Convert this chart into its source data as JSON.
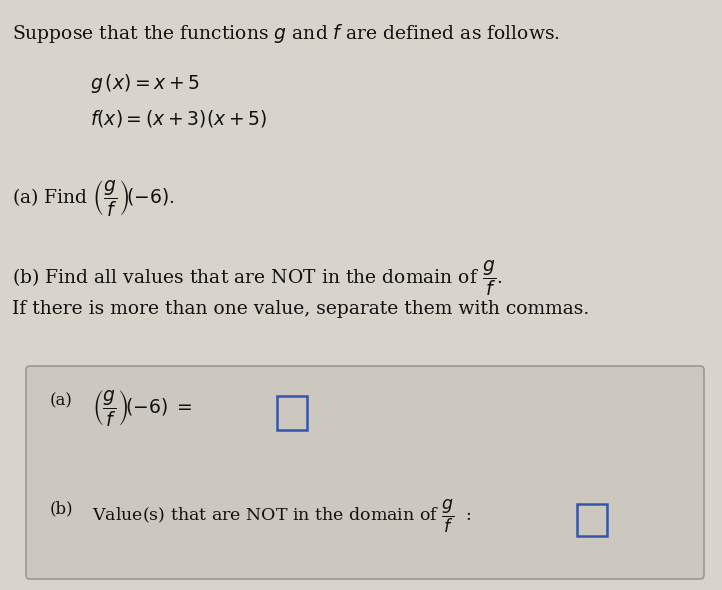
{
  "bg_color": "#d8d4cc",
  "box_bg": "#ccc8c0",
  "box_border": "#999999",
  "text_color": "#111111",
  "title_text": "Suppose that the functions $g$ and $f$ are defined as follows.",
  "line1": "$g\\,(x)=x+5$",
  "line2": "$f(x)=(x+3)(x+5)$",
  "part_a_find": "(a) Find $\\left(\\dfrac{g}{f}\\right)\\!(-6)$.",
  "part_b_find": "(b) Find all values that are NOT in the domain of $\\dfrac{g}{f}$.",
  "part_b_sub": "If there is more than one value, separate them with commas.",
  "box_a_label": "(a)",
  "box_a_expr": "$\\left(\\dfrac{g}{f}\\right)\\!(-6)\\;=$",
  "box_b_label": "(b)",
  "box_b_expr": "Value(s) that are NOT in the domain of $\\dfrac{g}{f}$  :",
  "input_border": "#3355aa",
  "ans_box_fill": "#ccc8c0"
}
